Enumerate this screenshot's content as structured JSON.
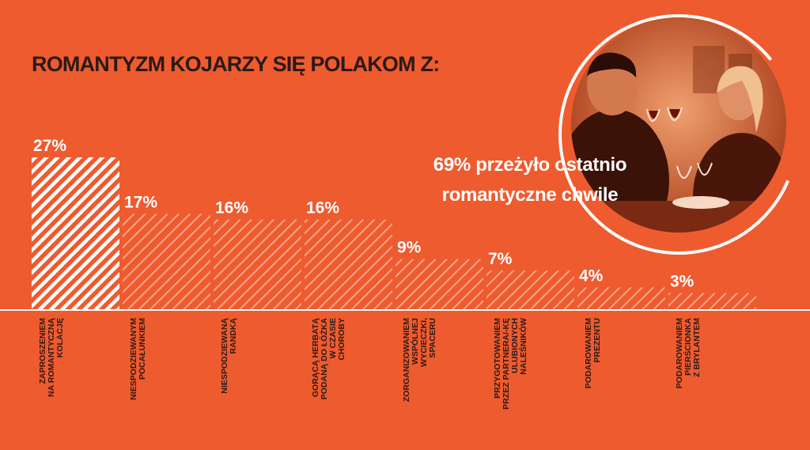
{
  "title": "ROMANTYZM KOJARZY SIĘ POLAKOM Z:",
  "callout": {
    "line1": "69% przeżyło ostatnio",
    "line2": "romantyczne chwile"
  },
  "photo": {
    "icon": "couple-toasting-wine-photo"
  },
  "colors": {
    "background": "#EE5B2F",
    "bar_stripe": "#ffffff",
    "label_text": "#2a1a16"
  },
  "chart_data": {
    "type": "bar",
    "categories": [
      [
        "ZAPROSZENIEM",
        "NA ROMANTYCZNĄ",
        "KOLACJĘ"
      ],
      [
        "NIESPODZIEWANYM",
        "POCAŁUNKIEM"
      ],
      [
        "NIESPODZIEWANĄ",
        "RANDKĄ"
      ],
      [
        "GORĄCĄ HERBATĄ",
        "PODANĄ DO ŁÓŻKA",
        "W CZASIE",
        "CHOROBY"
      ],
      [
        "ZORGANIZOWANIEM",
        "WSPÓLNEJ",
        "WYCIECZKI,",
        "SPACERU"
      ],
      [
        "PRZYGOTOWANIEM",
        "PRZEZ PARTNERA/-KĘ",
        "ULUBIONYCH",
        "NALEŚNIKÓW"
      ],
      [
        "PODAROWANIEM",
        "PREZENTU"
      ],
      [
        "PODAROWANIEM",
        "PIERŚCIONKA",
        "Z BRYLANTEM"
      ]
    ],
    "values": [
      27,
      17,
      16,
      16,
      9,
      7,
      4,
      3
    ],
    "value_labels": [
      "27%",
      "17%",
      "16%",
      "16%",
      "9%",
      "7%",
      "4%",
      "3%"
    ],
    "highlight_index": 0,
    "unit": "%",
    "ylim": [
      0,
      27
    ]
  }
}
